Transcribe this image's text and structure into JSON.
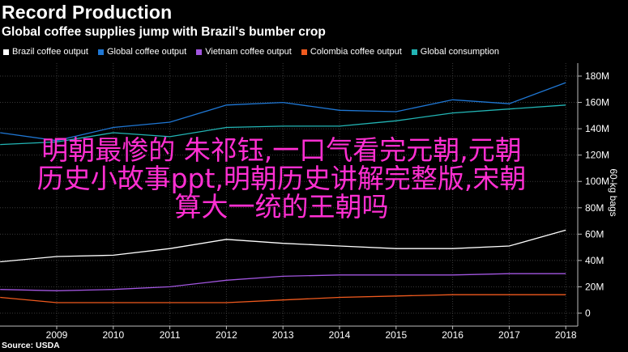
{
  "header": {
    "title": "Record Production",
    "subtitle": "Global coffee supplies jump with Brazil's bumber crop"
  },
  "footer": {
    "source": "Source: USDA"
  },
  "overlay": {
    "line1": "明朝最惨的 朱祁钰,一口气看完元朝,元朝",
    "line2": "历史小故事ppt,明朝历史讲解完整版,宋朝",
    "line3": "算大一统的王朝吗"
  },
  "chart_data": {
    "type": "line",
    "title": "Record Production",
    "subtitle": "Global coffee supplies jump with Brazil's bumber crop",
    "xlabel": "",
    "ylabel": "60-kg bags",
    "x": [
      2008,
      2009,
      2010,
      2011,
      2012,
      2013,
      2014,
      2015,
      2016,
      2017,
      2018
    ],
    "xticks": [
      "2009",
      "2010",
      "2011",
      "2012",
      "2013",
      "2014",
      "2015",
      "2016",
      "2017",
      "2018"
    ],
    "yticks": [
      "0",
      "20M",
      "40M",
      "60M",
      "80M",
      "100M",
      "120M",
      "140M",
      "160M",
      "180M"
    ],
    "ylim": [
      0,
      180
    ],
    "legend_position": "top",
    "series": [
      {
        "name": "Brazil coffee output",
        "color": "#ffffff",
        "values": [
          39,
          43,
          44,
          49,
          56,
          53,
          51,
          49,
          49,
          51,
          63
        ]
      },
      {
        "name": "Global coffee output",
        "color": "#1f77d4",
        "values": [
          137,
          131,
          141,
          145,
          158,
          160,
          154,
          153,
          162,
          159,
          175
        ]
      },
      {
        "name": "Vietnam coffee output",
        "color": "#a256e0",
        "values": [
          18,
          17,
          18,
          20,
          25,
          28,
          29,
          29,
          29,
          30,
          30
        ]
      },
      {
        "name": "Colombia coffee output",
        "color": "#f05a1e",
        "values": [
          12,
          8,
          8,
          8,
          8,
          10,
          12,
          13,
          14,
          14,
          14
        ]
      },
      {
        "name": "Global consumption",
        "color": "#22b5b5",
        "values": [
          128,
          130,
          137,
          134,
          141,
          142,
          142,
          146,
          152,
          155,
          158
        ]
      }
    ]
  }
}
